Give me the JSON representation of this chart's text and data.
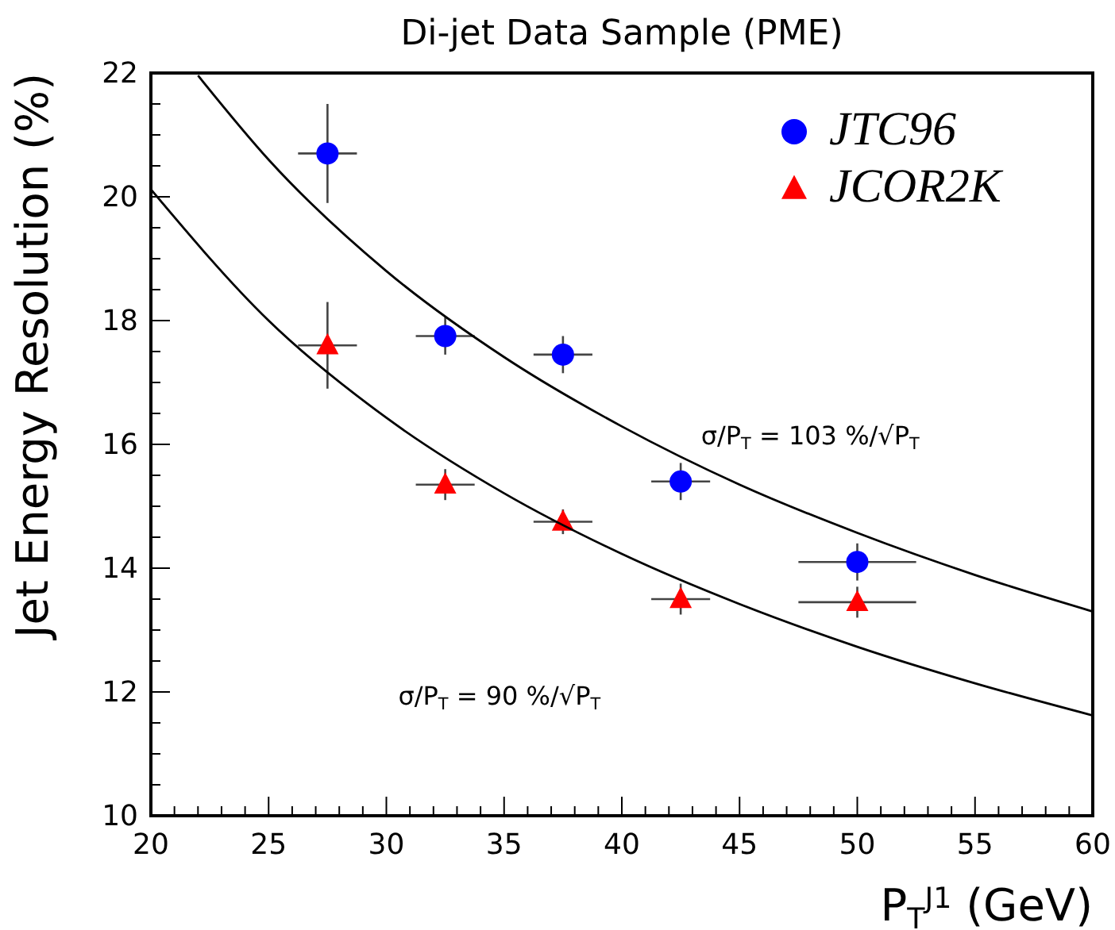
{
  "chart_data": {
    "type": "scatter",
    "title": "Di-jet Data Sample (PME)",
    "xlabel": "P$_{T}$$^{J1}$ (GeV)",
    "ylabel": "Jet Energy Resolution (%)",
    "xlim": [
      20,
      60
    ],
    "xticks": [
      20,
      25,
      30,
      35,
      40,
      45,
      50,
      55,
      60
    ],
    "ylim": [
      10,
      22
    ],
    "yticks": [
      10,
      12,
      14,
      16,
      18,
      20,
      22
    ],
    "grid": false,
    "legend": "top right",
    "series": [
      {
        "name": "JTC96",
        "color": "#0000ff",
        "marker": "circle",
        "x": [
          27.5,
          32.5,
          37.5,
          42.5,
          50
        ],
        "values": [
          20.7,
          17.75,
          17.45,
          15.4,
          14.1
        ],
        "errors": [
          0.8,
          0.3,
          0.3,
          0.3,
          0.3
        ],
        "xerrors": [
          1.25,
          1.25,
          1.25,
          1.25,
          2.5
        ]
      },
      {
        "name": "JCOR2K",
        "color": "#ff0000",
        "marker": "triangle",
        "x": [
          27.5,
          32.5,
          37.5,
          42.5,
          50
        ],
        "values": [
          17.6,
          15.35,
          14.75,
          13.5,
          13.45
        ],
        "errors": [
          0.7,
          0.25,
          0.2,
          0.25,
          0.25
        ],
        "xerrors": [
          1.25,
          1.25,
          1.25,
          1.25,
          2.5
        ]
      },
      {
        "type": "line",
        "color": "#000000",
        "marker": "none",
        "x": [
          22,
          25,
          30,
          35,
          40,
          45,
          50,
          55,
          60
        ],
        "values": [
          21.96,
          20.6,
          18.8,
          17.41,
          16.29,
          15.35,
          14.57,
          13.89,
          13.3
        ]
      },
      {
        "type": "line",
        "color": "#000000",
        "marker": "none",
        "x": [
          20,
          25,
          30,
          35,
          40,
          45,
          50,
          55,
          60
        ],
        "values": [
          20.12,
          18.0,
          16.43,
          15.21,
          14.23,
          13.42,
          12.73,
          12.14,
          11.62
        ]
      }
    ],
    "annotations": [
      "σ/P$_{T}$ = 103 %/√P$_{T}$",
      "σ/P$_{T}$ = 90 %/√P$_{T}$"
    ]
  }
}
